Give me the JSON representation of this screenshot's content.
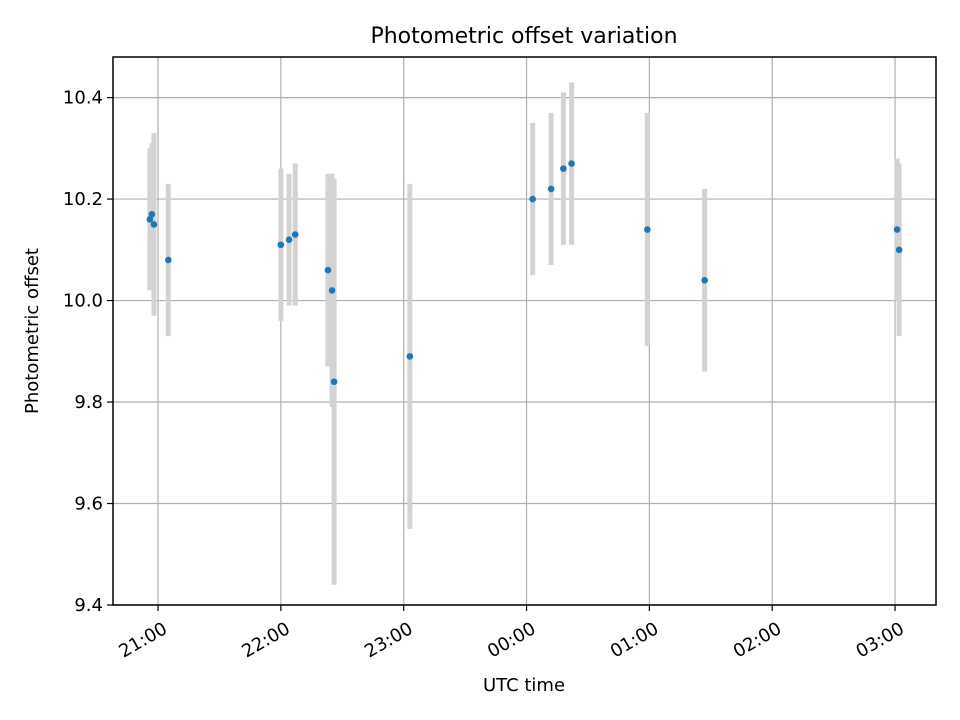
{
  "chart_data": {
    "type": "scatter",
    "title": "Photometric offset variation",
    "xlabel": "UTC time",
    "ylabel": "Photometric offset",
    "ylim": [
      9.4,
      10.48
    ],
    "xlim": [
      "20:38",
      "03:20"
    ],
    "grid": true,
    "x_ticks": [
      "21:00",
      "22:00",
      "23:00",
      "00:00",
      "01:00",
      "02:00",
      "03:00"
    ],
    "y_ticks": [
      "9.4",
      "9.6",
      "9.8",
      "10.0",
      "10.2",
      "10.4"
    ],
    "colors": {
      "point": "#1f77b4",
      "errorbar": "#d3d3d3",
      "grid": "#b0b0b0",
      "axes": "#000000"
    },
    "points": [
      {
        "x": "20:56",
        "y": 10.16,
        "err": 0.14
      },
      {
        "x": "20:57",
        "y": 10.17,
        "err": 0.14
      },
      {
        "x": "20:58",
        "y": 10.15,
        "err": 0.18
      },
      {
        "x": "21:05",
        "y": 10.08,
        "err": 0.15
      },
      {
        "x": "22:00",
        "y": 10.11,
        "err": 0.15
      },
      {
        "x": "22:04",
        "y": 10.12,
        "err": 0.13
      },
      {
        "x": "22:07",
        "y": 10.13,
        "err": 0.14
      },
      {
        "x": "22:23",
        "y": 10.06,
        "err": 0.19
      },
      {
        "x": "22:25",
        "y": 10.02,
        "err": 0.23
      },
      {
        "x": "22:26",
        "y": 9.84,
        "err": 0.4
      },
      {
        "x": "23:03",
        "y": 9.89,
        "err": 0.34
      },
      {
        "x": "00:03",
        "y": 10.2,
        "err": 0.15
      },
      {
        "x": "00:12",
        "y": 10.22,
        "err": 0.15
      },
      {
        "x": "00:18",
        "y": 10.26,
        "err": 0.15
      },
      {
        "x": "00:22",
        "y": 10.27,
        "err": 0.16
      },
      {
        "x": "00:59",
        "y": 10.14,
        "err": 0.23
      },
      {
        "x": "01:27",
        "y": 10.04,
        "err": 0.18
      },
      {
        "x": "03:01",
        "y": 10.14,
        "err": 0.14
      },
      {
        "x": "03:02",
        "y": 10.1,
        "err": 0.17
      }
    ]
  }
}
